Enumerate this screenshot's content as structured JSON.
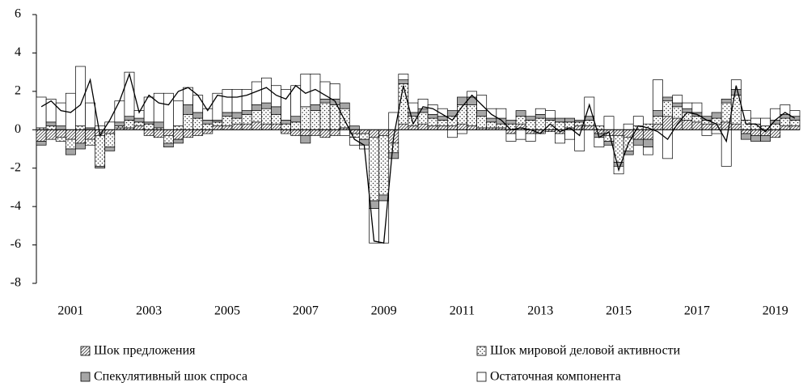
{
  "chart_data": {
    "type": "bar",
    "stacked": true,
    "ylim": [
      -8,
      6
    ],
    "yticks": [
      -8,
      -6,
      -4,
      -2,
      0,
      2,
      4,
      6
    ],
    "grid": false,
    "categories": [
      null,
      null,
      null,
      "2001",
      null,
      null,
      null,
      null,
      null,
      null,
      null,
      "2003",
      null,
      null,
      null,
      null,
      null,
      null,
      null,
      "2005",
      null,
      null,
      null,
      null,
      null,
      null,
      null,
      "2007",
      null,
      null,
      null,
      null,
      null,
      null,
      null,
      "2009",
      null,
      null,
      null,
      null,
      null,
      null,
      null,
      "2011",
      null,
      null,
      null,
      null,
      null,
      null,
      null,
      "2013",
      null,
      null,
      null,
      null,
      null,
      null,
      null,
      "2015",
      null,
      null,
      null,
      null,
      null,
      null,
      null,
      "2017",
      null,
      null,
      null,
      null,
      null,
      null,
      null,
      "2019",
      null,
      null
    ],
    "series": [
      {
        "name": "Шок предложения",
        "pattern": "hatch",
        "color": "#ffffff",
        "values": [
          -0.6,
          -0.5,
          -0.4,
          -0.5,
          -0.7,
          -0.5,
          -0.3,
          -0.2,
          0.1,
          0.1,
          0.2,
          -0.3,
          -0.4,
          -0.3,
          -0.5,
          -0.4,
          -0.3,
          -0.2,
          0.2,
          0.2,
          0.3,
          0.3,
          0.4,
          0.3,
          0.3,
          -0.2,
          -0.3,
          -0.3,
          -0.3,
          -0.4,
          -0.3,
          0.1,
          -0.2,
          -0.2,
          -0.4,
          -0.3,
          -0.7,
          0.3,
          0.2,
          0.3,
          0.2,
          0.2,
          0.2,
          0.3,
          0.2,
          0.1,
          0.1,
          0.1,
          -0.2,
          0.3,
          -0.2,
          -0.2,
          -0.1,
          -0.2,
          0.1,
          0.2,
          0.2,
          -0.2,
          -0.3,
          -0.3,
          -0.4,
          -0.5,
          -0.5,
          0.3,
          0.7,
          0.6,
          0.5,
          0.4,
          0.3,
          0.3,
          0.4,
          0.3,
          -0.2,
          -0.3,
          -0.3,
          -0.4,
          0.2,
          0.2
        ]
      },
      {
        "name": "Шок мировой деловой активности",
        "pattern": "dots",
        "color": "#ffffff",
        "values": [
          0.1,
          0.2,
          -0.2,
          -0.5,
          0.2,
          -0.3,
          -1.6,
          -0.7,
          0.1,
          0.4,
          0.2,
          0.3,
          0.1,
          -0.4,
          0.2,
          0.8,
          0.6,
          0.3,
          0.2,
          0.5,
          0.3,
          0.5,
          0.6,
          0.8,
          0.5,
          0.3,
          0.4,
          1.2,
          1.0,
          1.4,
          1.3,
          1.0,
          -0.2,
          -0.3,
          -3.3,
          -3.1,
          -0.5,
          2.1,
          0.5,
          0.6,
          0.4,
          0.3,
          0.5,
          1.0,
          1.1,
          0.6,
          0.3,
          0.2,
          0.3,
          0.4,
          0.5,
          0.6,
          0.5,
          0.4,
          0.3,
          0.2,
          0.3,
          0.2,
          -0.3,
          -1.4,
          -0.7,
          0.2,
          0.3,
          0.4,
          0.8,
          0.6,
          0.4,
          0.3,
          0.2,
          0.3,
          1.0,
          1.5,
          0.5,
          0.3,
          0.2,
          0.3,
          0.4,
          0.3
        ]
      },
      {
        "name": "Спекулятивный шок спроса",
        "color": "#a6a6a6",
        "values": [
          -0.2,
          0.2,
          0.2,
          -0.3,
          -0.3,
          0.1,
          -0.1,
          -0.2,
          0.2,
          0.2,
          0.2,
          0.1,
          0.3,
          -0.2,
          -0.2,
          0.5,
          0.3,
          0.2,
          0.1,
          0.2,
          0.3,
          0.2,
          0.3,
          0.3,
          0.4,
          0.2,
          0.3,
          -0.4,
          0.3,
          0.2,
          0.3,
          0.3,
          0.2,
          -0.3,
          -0.4,
          -0.3,
          -0.3,
          0.2,
          0.2,
          0.2,
          0.2,
          0.2,
          0.3,
          0.4,
          0.4,
          0.3,
          0.2,
          0.3,
          0.2,
          0.3,
          0.2,
          0.2,
          0.1,
          0.2,
          0.2,
          0.1,
          0.2,
          -0.2,
          -0.2,
          -0.2,
          -0.2,
          -0.3,
          -0.4,
          0.3,
          0.2,
          0.2,
          0.2,
          0.2,
          0.2,
          0.3,
          0.2,
          0.3,
          -0.3,
          -0.3,
          -0.3,
          0.2,
          0.2,
          0.2
        ]
      },
      {
        "name": "Остаточная компонента",
        "color": "#ffffff",
        "values": [
          1.6,
          1.2,
          1.2,
          1.9,
          3.1,
          1.3,
          0.2,
          0.4,
          1.1,
          2.3,
          0.4,
          1.3,
          1.5,
          1.9,
          1.3,
          0.9,
          0.9,
          0.6,
          1.4,
          1.2,
          1.2,
          1.1,
          1.2,
          1.3,
          1.1,
          1.6,
          1.6,
          1.7,
          1.6,
          0.9,
          0.8,
          -0.3,
          -0.4,
          -0.2,
          -1.8,
          -2.2,
          0.9,
          0.3,
          0.5,
          0.5,
          0.5,
          0.4,
          -0.4,
          -0.2,
          0.3,
          0.8,
          0.5,
          0.5,
          -0.4,
          -0.5,
          -0.4,
          0.3,
          0.4,
          -0.5,
          -0.5,
          -1.1,
          1.0,
          -0.5,
          0.7,
          -0.4,
          0.3,
          0.5,
          -0.4,
          1.6,
          -1.5,
          0.4,
          0.3,
          0.5,
          -0.3,
          -0.2,
          -1.9,
          0.5,
          0.5,
          0.3,
          0.4,
          0.6,
          0.5,
          0.3
        ]
      },
      {
        "type": "line",
        "color": "#000000",
        "values": [
          1.2,
          1.5,
          1.0,
          0.9,
          1.3,
          2.6,
          -0.3,
          0.5,
          1.5,
          2.9,
          0.9,
          1.8,
          1.4,
          1.3,
          2.0,
          2.2,
          1.8,
          1.0,
          1.8,
          1.7,
          1.7,
          1.8,
          2.0,
          2.2,
          1.8,
          1.6,
          2.3,
          1.9,
          2.1,
          1.8,
          1.5,
          0.5,
          -0.5,
          -0.8,
          -5.8,
          -5.9,
          -0.4,
          2.3,
          0.3,
          1.2,
          1.1,
          0.8,
          0.5,
          1.2,
          1.8,
          1.3,
          0.8,
          0.5,
          0.0,
          0.1,
          0.0,
          -0.2,
          0.3,
          -0.1,
          0.1,
          -0.3,
          1.3,
          -0.4,
          -0.1,
          -2.1,
          -0.7,
          0.2,
          0.1,
          -0.1,
          -0.5,
          0.3,
          0.9,
          0.8,
          0.5,
          0.3,
          -0.6,
          2.3,
          0.3,
          0.3,
          -0.1,
          0.5,
          0.9,
          0.6
        ]
      }
    ]
  }
}
